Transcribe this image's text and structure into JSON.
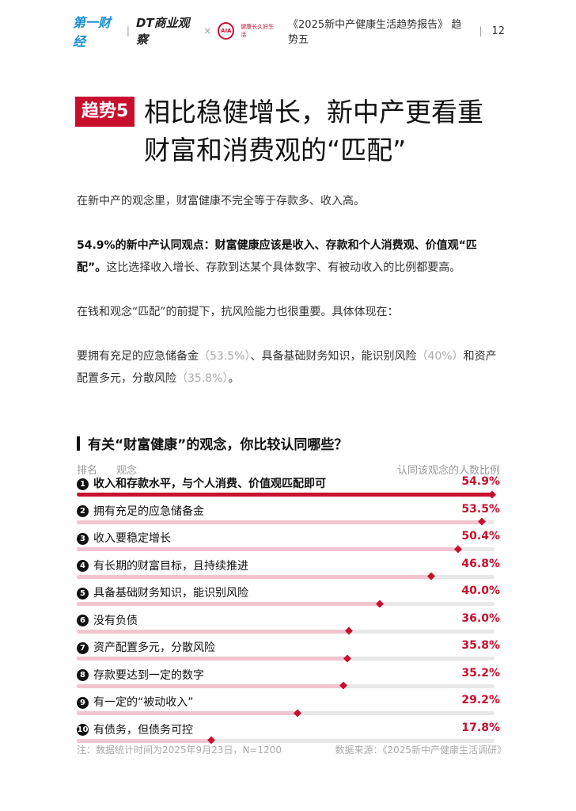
{
  "header": {
    "logo_yicai": "第一财经",
    "logo_dt": "DT商业观察",
    "times": "×",
    "logo_aia": "AIA",
    "aia_tagline": "健康长久好生活",
    "report_title": "《2025新中产健康生活趋势报告》 趋势五",
    "divider": "|",
    "page_number": "12"
  },
  "badge": "趋势5",
  "title_line1": "相比稳健增长，新中产更看重",
  "title_line2": "财富和消费观的“匹配”",
  "para1": "在新中产的观念里，财富健康不完全等于存款多、收入高。",
  "para2_bold": "54.9%的新中产认同观点：财富健康应该是收入、存款和个人消费观、价值观“匹配”。",
  "para2_rest": "这比选择收入增长、存款到达某个具体数字、有被动收入的比例都要高。",
  "para3": "在钱和观念“匹配”的前提下，抗风险能力也很重要。具体体现在：",
  "para4": {
    "t1": "要拥有充足的应急储备金",
    "v1": "（53.5%）",
    "t2": "、具备基础财务知识，能识别风险",
    "v2": "（40%）",
    "t3": "和资产配置多元，分散风险",
    "v3": "（35.8%）",
    "t4": "。"
  },
  "accent_color": "#c8102e",
  "chart_data": {
    "type": "bar",
    "title": "有关“财富健康”的观念，你比较认同哪些？",
    "col_rank": "排名",
    "col_concept": "观念",
    "col_value": "认同该观念的人数比例",
    "categories": [
      "收入和存款水平，与个人消费、价值观匹配即可",
      "拥有充足的应急储备金",
      "收入要稳定增长",
      "有长期的财富目标，且持续推进",
      "具备基础财务知识，能识别风险",
      "没有负债",
      "资产配置多元，分散风险",
      "存款要达到一定的数字",
      "有一定的“被动收入”",
      "有债务，但债务可控"
    ],
    "values": [
      54.9,
      53.5,
      50.4,
      46.8,
      40.0,
      36.0,
      35.8,
      35.2,
      29.2,
      17.8
    ],
    "labels": [
      "54.9%",
      "53.5%",
      "50.4%",
      "46.8%",
      "40.0%",
      "36.0%",
      "35.8%",
      "35.2%",
      "29.2%",
      "17.8%"
    ],
    "ranks": [
      "1",
      "2",
      "3",
      "4",
      "5",
      "6",
      "7",
      "8",
      "9",
      "10"
    ],
    "xlim": [
      0,
      55.2
    ]
  },
  "footer": {
    "note": "注：数据统计时间为2025年9月23日，N=1200",
    "source": "数据来源：《2025新中产健康生活调研》"
  }
}
